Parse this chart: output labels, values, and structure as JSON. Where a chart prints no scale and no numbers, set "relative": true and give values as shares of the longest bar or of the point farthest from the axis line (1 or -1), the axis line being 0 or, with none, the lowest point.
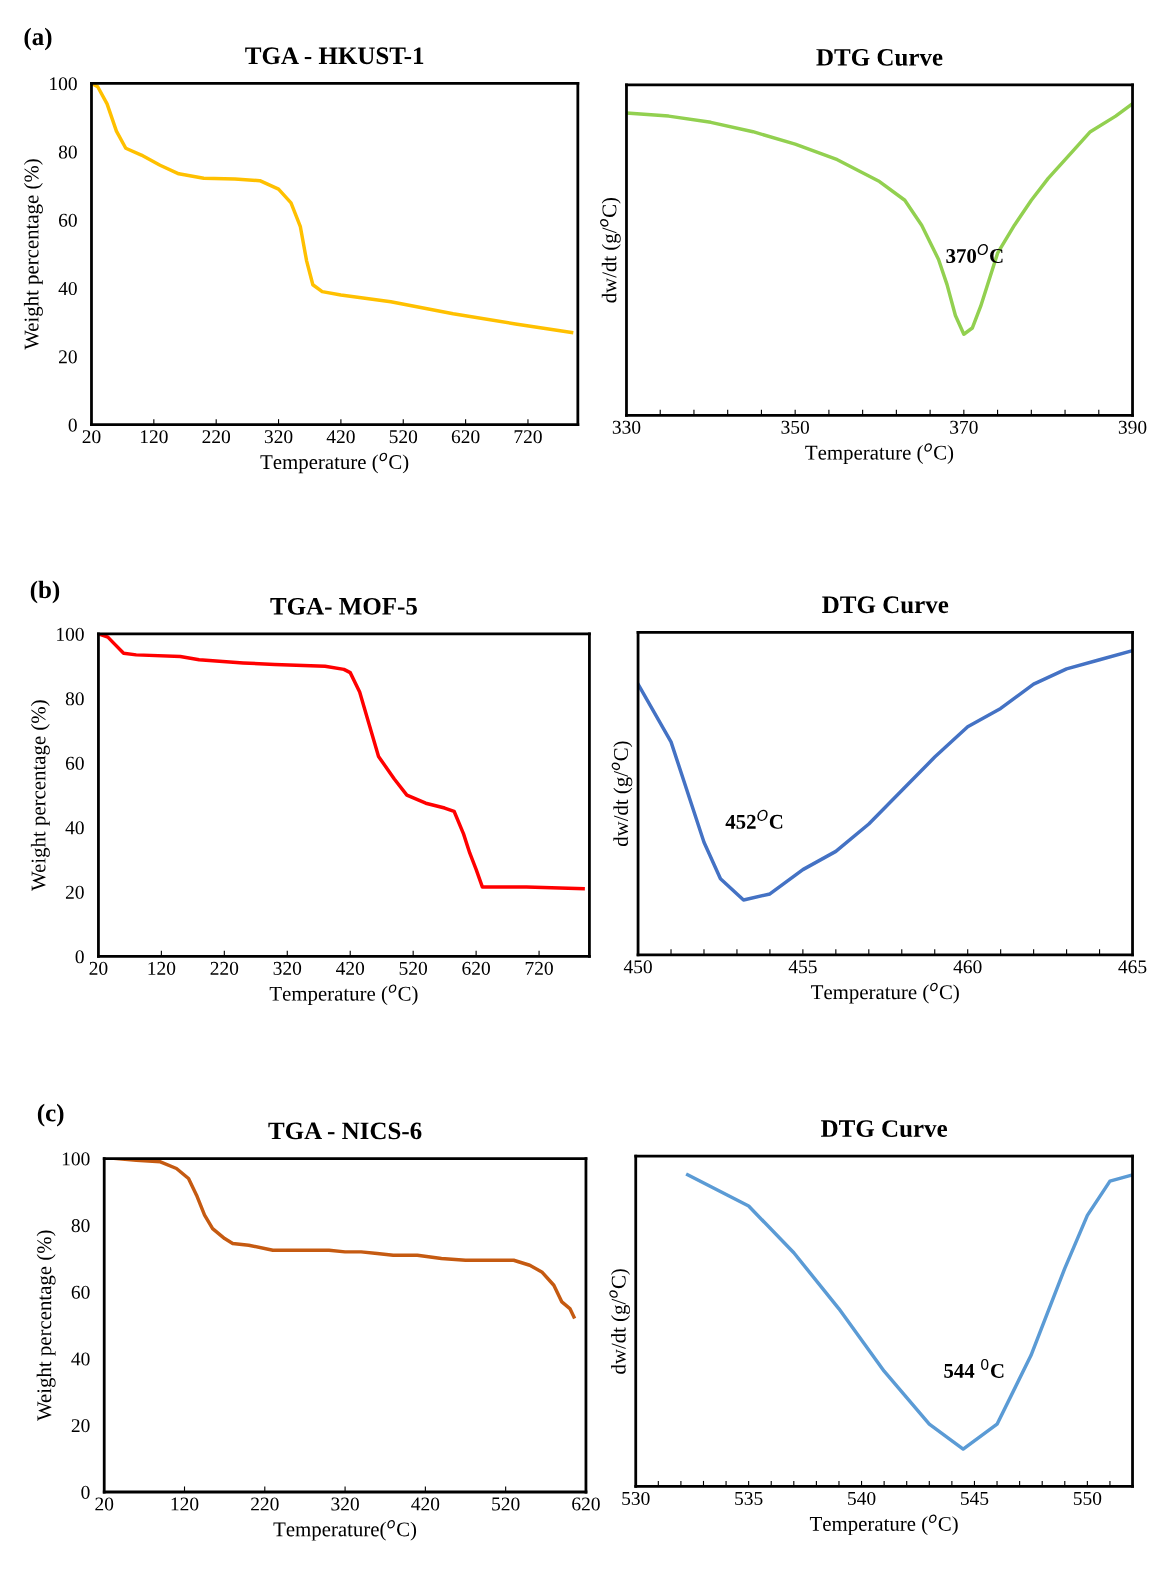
{
  "chart_data": [
    {
      "type": "line",
      "title": "TGA - HKUST-1",
      "xlabel": "Temperature ($^{o}$C)",
      "ylabel": "Weight percentage (%)",
      "annotations": [
        "(a)"
      ],
      "x": [
        20,
        30,
        45,
        60,
        75,
        100,
        130,
        160,
        200,
        250,
        290,
        320,
        340,
        355,
        365,
        375,
        390,
        420,
        500,
        600,
        700,
        790
      ],
      "series": [
        {
          "color": "#ffc000",
          "values": [
            100,
            99,
            94,
            86,
            81,
            79,
            76,
            73.5,
            72.2,
            72,
            71.5,
            69,
            65,
            58,
            48,
            41,
            39,
            38,
            36,
            32.5,
            29.5,
            27
          ]
        }
      ],
      "xlim": [
        20,
        800
      ],
      "xticks": [
        20,
        120,
        220,
        320,
        420,
        520,
        620,
        720
      ],
      "ylim": [
        0,
        100
      ],
      "yticks": [
        0,
        20,
        40,
        60,
        80,
        100
      ],
      "grid": false,
      "legend": false
    },
    {
      "type": "line",
      "title": "DTG Curve",
      "xlabel": "Temperature ($^{o}$C)",
      "ylabel": "dw/dt (g/$^{o}$C)",
      "relative": true,
      "tick_labels": "x",
      "annotations": [
        "370$^{O}$C"
      ],
      "x": [
        330,
        335,
        340,
        345,
        350,
        355,
        360,
        363,
        365,
        367,
        368,
        369,
        370,
        371,
        372,
        374,
        376,
        378,
        380,
        383,
        385,
        388,
        390
      ],
      "series": [
        {
          "color": "#92d050",
          "values": [
            0.97,
            0.96,
            0.94,
            0.91,
            0.87,
            0.82,
            0.75,
            0.69,
            0.61,
            0.5,
            0.42,
            0.32,
            0.26,
            0.28,
            0.35,
            0.52,
            0.61,
            0.69,
            0.76,
            0.85,
            0.91,
            0.96,
            1
          ]
        }
      ],
      "xlim": [
        330,
        390
      ],
      "xticks": [
        330,
        {
          "value": 334,
          "label": null
        },
        {
          "value": 338,
          "label": null
        },
        {
          "value": 342,
          "label": null
        },
        {
          "value": 346,
          "label": null
        },
        350,
        {
          "value": 354,
          "label": null
        },
        {
          "value": 358,
          "label": null
        },
        {
          "value": 362,
          "label": null
        },
        {
          "value": 366,
          "label": null
        },
        370,
        {
          "value": 374,
          "label": null
        },
        {
          "value": 378,
          "label": null
        },
        {
          "value": 382,
          "label": null
        },
        {
          "value": 386,
          "label": null
        },
        390
      ],
      "grid": false,
      "legend": false
    },
    {
      "type": "line",
      "title": "TGA- MOF-5",
      "xlabel": "Temperature ($^{o}$C)",
      "ylabel": "Weight percentage (%)",
      "annotations": [
        "(b)"
      ],
      "x": [
        20,
        35,
        45,
        60,
        80,
        150,
        180,
        250,
        300,
        380,
        410,
        420,
        435,
        450,
        465,
        490,
        510,
        540,
        570,
        585,
        600,
        610,
        620,
        630,
        700,
        790
      ],
      "series": [
        {
          "color": "#ff0000",
          "values": [
            100,
            99,
            97,
            94,
            93.5,
            93,
            92,
            91,
            90.5,
            90,
            89,
            88,
            82,
            72,
            62,
            55,
            50,
            47.5,
            46,
            45,
            38,
            32,
            27,
            21.5,
            21.5,
            21
          ]
        }
      ],
      "xlim": [
        20,
        800
      ],
      "xticks": [
        20,
        120,
        220,
        320,
        420,
        520,
        620,
        720
      ],
      "ylim": [
        0,
        100
      ],
      "yticks": [
        0,
        20,
        40,
        60,
        80,
        100
      ],
      "grid": false,
      "legend": false
    },
    {
      "type": "line",
      "title": "DTG Curve",
      "xlabel": "Temperature ($^{o}$C)",
      "ylabel": "dw/dt (g/$^{o}$C)",
      "relative": true,
      "tick_labels": "x",
      "annotations": [
        "452$^{O}$C"
      ],
      "x": [
        450,
        451,
        452,
        452.5,
        453.2,
        454,
        455,
        456,
        457,
        458,
        459,
        460,
        461,
        462,
        463,
        464,
        465
      ],
      "series": [
        {
          "color": "#4472c4",
          "values": [
            0.89,
            0.7,
            0.37,
            0.25,
            0.18,
            0.2,
            0.28,
            0.34,
            0.43,
            0.54,
            0.65,
            0.75,
            0.81,
            0.89,
            0.94,
            0.97,
            1
          ]
        }
      ],
      "xlim": [
        450,
        465
      ],
      "xticks": [
        450,
        {
          "value": 451,
          "label": null
        },
        {
          "value": 452,
          "label": null
        },
        {
          "value": 453,
          "label": null
        },
        {
          "value": 454,
          "label": null
        },
        455,
        {
          "value": 456,
          "label": null
        },
        {
          "value": 457,
          "label": null
        },
        {
          "value": 458,
          "label": null
        },
        {
          "value": 459,
          "label": null
        },
        460,
        {
          "value": 461,
          "label": null
        },
        {
          "value": 462,
          "label": null
        },
        {
          "value": 463,
          "label": null
        },
        {
          "value": 464,
          "label": null
        },
        465
      ],
      "grid": false,
      "legend": false
    },
    {
      "type": "line",
      "title": "TGA - NICS-6",
      "xlabel": "Temperature($^{o}$C)",
      "ylabel": "Weight percentage (%)",
      "annotations": [
        "(c)"
      ],
      "x": [
        34,
        60,
        90,
        110,
        125,
        135,
        145,
        155,
        170,
        180,
        200,
        230,
        300,
        320,
        340,
        360,
        380,
        410,
        440,
        470,
        500,
        530,
        550,
        565,
        580,
        590,
        600,
        605
      ],
      "series": [
        {
          "color": "#c55a11",
          "values": [
            100,
            99.5,
            99,
            97,
            94,
            89,
            83,
            79,
            76,
            74.5,
            74,
            72.5,
            72.5,
            72,
            72,
            71.5,
            71,
            71,
            70,
            69.5,
            69.5,
            69.5,
            68,
            66,
            62,
            57,
            55,
            52.5
          ]
        }
      ],
      "xlim": [
        20,
        620
      ],
      "xticks": [
        20,
        120,
        220,
        320,
        420,
        520,
        620
      ],
      "ylim": [
        0,
        100
      ],
      "yticks": [
        0,
        20,
        40,
        60,
        80,
        100
      ],
      "grid": false,
      "legend": false
    },
    {
      "type": "line",
      "title": "DTG Curve",
      "xlabel": "Temperature ($^{o}$C)",
      "ylabel": "dw/dt (g/$^{o}$C)",
      "relative": true,
      "tick_labels": "x",
      "annotations": [
        "544 $^{0}$C"
      ],
      "x": [
        532.3,
        535,
        537,
        539,
        541,
        543,
        544.5,
        546,
        547.5,
        549,
        550,
        551,
        552
      ],
      "series": [
        {
          "color": "#5b9bd5",
          "values": [
            1,
            0.9,
            0.75,
            0.57,
            0.37,
            0.2,
            0.12,
            0.2,
            0.42,
            0.7,
            0.87,
            0.98,
            1
          ]
        }
      ],
      "xlim": [
        530,
        552
      ],
      "xticks": [
        530,
        {
          "value": 531,
          "label": null
        },
        {
          "value": 532,
          "label": null
        },
        {
          "value": 533,
          "label": null
        },
        {
          "value": 534,
          "label": null
        },
        535,
        {
          "value": 536,
          "label": null
        },
        {
          "value": 537,
          "label": null
        },
        {
          "value": 538,
          "label": null
        },
        {
          "value": 539,
          "label": null
        },
        540,
        {
          "value": 541,
          "label": null
        },
        {
          "value": 542,
          "label": null
        },
        {
          "value": 543,
          "label": null
        },
        {
          "value": 544,
          "label": null
        },
        545,
        {
          "value": 546,
          "label": null
        },
        {
          "value": 547,
          "label": null
        },
        {
          "value": 548,
          "label": null
        },
        {
          "value": 549,
          "label": null
        },
        550,
        {
          "value": 551,
          "label": null
        }
      ],
      "grid": false,
      "legend": false
    }
  ]
}
